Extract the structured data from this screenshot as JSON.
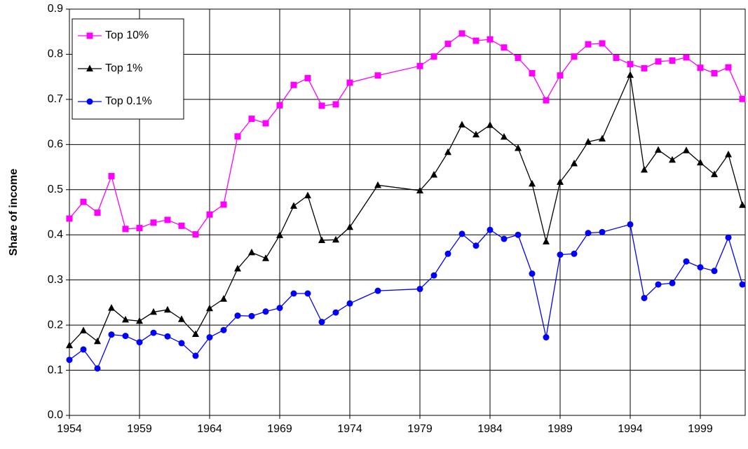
{
  "chart_data": {
    "type": "line",
    "ylabel": "Share of income",
    "xlim": [
      1954,
      2002.2
    ],
    "xticks": [
      1954,
      1959,
      1964,
      1969,
      1974,
      1979,
      1984,
      1989,
      1994,
      1999
    ],
    "ylim": [
      0,
      0.9
    ],
    "yticks": [
      {
        "value": 0,
        "label": "0.0"
      },
      0.1,
      0.2,
      0.3,
      0.4,
      0.5,
      0.6,
      0.7,
      0.8,
      0.9
    ],
    "grid": true,
    "legend": "upper left",
    "series": [
      {
        "name": "Top 10%",
        "color": "#ff00ff",
        "marker": "square",
        "x": [
          1954,
          1955,
          1956,
          1957,
          1958,
          1959,
          1960,
          1961,
          1962,
          1963,
          1964,
          1965,
          1966,
          1967,
          1968,
          1969,
          1970,
          1971,
          1972,
          1973,
          1974,
          1976,
          1979,
          1980,
          1981,
          1982,
          1983,
          1984,
          1985,
          1986,
          1987,
          1988,
          1989,
          1990,
          1991,
          1992,
          1993,
          1994,
          1995,
          1996,
          1997,
          1998,
          1999,
          2000,
          2001,
          2002
        ],
        "values": [
          0.436,
          0.473,
          0.449,
          0.53,
          0.413,
          0.415,
          0.427,
          0.433,
          0.42,
          0.401,
          0.445,
          0.467,
          0.618,
          0.657,
          0.647,
          0.687,
          0.732,
          0.747,
          0.686,
          0.689,
          0.737,
          0.753,
          0.774,
          0.795,
          0.823,
          0.846,
          0.83,
          0.833,
          0.815,
          0.792,
          0.758,
          0.698,
          0.753,
          0.795,
          0.822,
          0.824,
          0.792,
          0.778,
          0.769,
          0.784,
          0.786,
          0.793,
          0.77,
          0.758,
          0.771,
          0.701
        ]
      },
      {
        "name": "Top 1%",
        "color": "#000000",
        "marker": "triangle",
        "x": [
          1954,
          1955,
          1956,
          1957,
          1958,
          1959,
          1960,
          1961,
          1962,
          1963,
          1964,
          1965,
          1966,
          1967,
          1968,
          1969,
          1970,
          1971,
          1972,
          1973,
          1974,
          1976,
          1979,
          1980,
          1981,
          1982,
          1983,
          1984,
          1985,
          1986,
          1987,
          1988,
          1989,
          1990,
          1991,
          1992,
          1994,
          1995,
          1996,
          1997,
          1998,
          1999,
          2000,
          2001,
          2002
        ],
        "values": [
          0.155,
          0.188,
          0.164,
          0.238,
          0.212,
          0.209,
          0.229,
          0.234,
          0.213,
          0.18,
          0.237,
          0.258,
          0.325,
          0.361,
          0.348,
          0.399,
          0.464,
          0.487,
          0.388,
          0.389,
          0.417,
          0.51,
          0.498,
          0.533,
          0.583,
          0.644,
          0.622,
          0.643,
          0.617,
          0.592,
          0.513,
          0.385,
          0.517,
          0.558,
          0.606,
          0.613,
          0.754,
          0.544,
          0.588,
          0.566,
          0.587,
          0.56,
          0.534,
          0.578,
          0.466
        ]
      },
      {
        "name": "Top 0.1%",
        "color": "#0000ff",
        "marker": "circle",
        "x": [
          1954,
          1955,
          1956,
          1957,
          1958,
          1959,
          1960,
          1961,
          1962,
          1963,
          1964,
          1965,
          1966,
          1967,
          1968,
          1969,
          1970,
          1971,
          1972,
          1973,
          1974,
          1976,
          1979,
          1980,
          1981,
          1982,
          1983,
          1984,
          1985,
          1986,
          1987,
          1988,
          1989,
          1990,
          1991,
          1992,
          1994,
          1995,
          1996,
          1997,
          1998,
          1999,
          2000,
          2001,
          2002
        ],
        "values": [
          0.123,
          0.146,
          0.104,
          0.179,
          0.176,
          0.162,
          0.183,
          0.175,
          0.16,
          0.132,
          0.173,
          0.189,
          0.221,
          0.22,
          0.23,
          0.238,
          0.27,
          0.27,
          0.207,
          0.228,
          0.248,
          0.276,
          0.28,
          0.31,
          0.358,
          0.402,
          0.376,
          0.411,
          0.391,
          0.4,
          0.314,
          0.173,
          0.356,
          0.358,
          0.404,
          0.406,
          0.423,
          0.26,
          0.29,
          0.293,
          0.341,
          0.328,
          0.32,
          0.394,
          0.29
        ]
      }
    ]
  }
}
